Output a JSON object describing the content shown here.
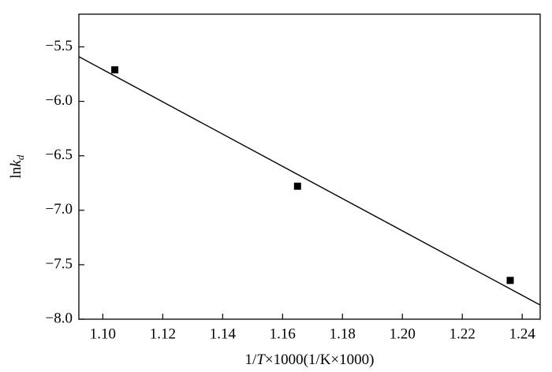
{
  "chart_data": {
    "type": "scatter",
    "xlabel": [
      "1/",
      "T",
      "×1000(1/K×1000)"
    ],
    "ylabel": [
      "ln",
      "k",
      "d"
    ],
    "x": [
      1.104,
      1.165,
      1.236
    ],
    "series": [
      {
        "values": [
          -5.711,
          -6.779,
          -7.644
        ],
        "color": "#000000",
        "marker": "square"
      },
      {
        "x": [
          1.092,
          1.246
        ],
        "values": [
          -5.59,
          -7.87
        ],
        "color": "#000000",
        "marker": "line"
      }
    ],
    "xlim": [
      1.092,
      1.246
    ],
    "xticks": [
      {
        "value": 1.1,
        "label": "1.10"
      },
      1.12,
      1.14,
      1.16,
      1.18,
      {
        "value": 1.2,
        "label": "1.20"
      },
      1.22,
      1.24
    ],
    "ylim": [
      -8.0,
      -5.2
    ],
    "yticks": [
      {
        "value": -8,
        "label": "−8.0"
      },
      {
        "value": -7.5,
        "label": "−7.5"
      },
      {
        "value": -7,
        "label": "−7.0"
      },
      {
        "value": -6.5,
        "label": "−6.5"
      },
      {
        "value": -6,
        "label": "−6.0"
      },
      {
        "value": -5.5,
        "label": "−5.5"
      }
    ],
    "grid": false
  }
}
